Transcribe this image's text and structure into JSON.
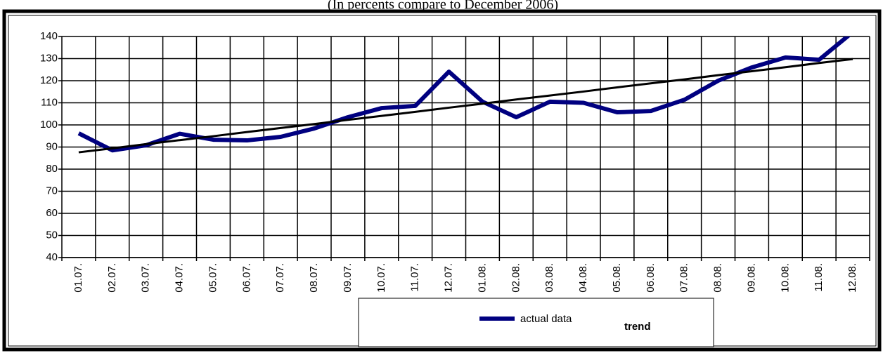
{
  "chart_data": {
    "type": "line",
    "title": "(In percents compare to December 2006)",
    "categories": [
      "01.07.",
      "02.07.",
      "03.07.",
      "04.07.",
      "05.07.",
      "06.07.",
      "07.07.",
      "08.07.",
      "09.07.",
      "10.07.",
      "11.07.",
      "12.07.",
      "01.08.",
      "02.08.",
      "03.08.",
      "04.08.",
      "05.08.",
      "06.08.",
      "07.08.",
      "08.08.",
      "09.08.",
      "10.08.",
      "11.08.",
      "12.08."
    ],
    "series": [
      {
        "name": "actual data",
        "color": "#000080",
        "values": [
          96.2,
          88.5,
          90.8,
          96,
          93.3,
          93,
          94.6,
          98.4,
          103.5,
          107.6,
          108.6,
          124.1,
          110.5,
          103.5,
          110.5,
          110,
          105.7,
          106.3,
          111.4,
          120,
          126,
          130.5,
          129.5,
          142
        ]
      },
      {
        "name": "trend",
        "color": "#000000",
        "values": [
          87.6,
          89.4,
          91.3,
          93.1,
          94.9,
          96.8,
          98.6,
          100.4,
          102.3,
          104.1,
          105.9,
          107.8,
          109.6,
          111.5,
          113.3,
          115.1,
          117.0,
          118.8,
          120.6,
          122.5,
          124.3,
          126.1,
          128.0,
          129.8
        ]
      }
    ],
    "ylim": [
      40,
      140
    ],
    "yticks": [
      40,
      50,
      60,
      70,
      80,
      90,
      100,
      110,
      120,
      130,
      140
    ],
    "grid": true
  }
}
